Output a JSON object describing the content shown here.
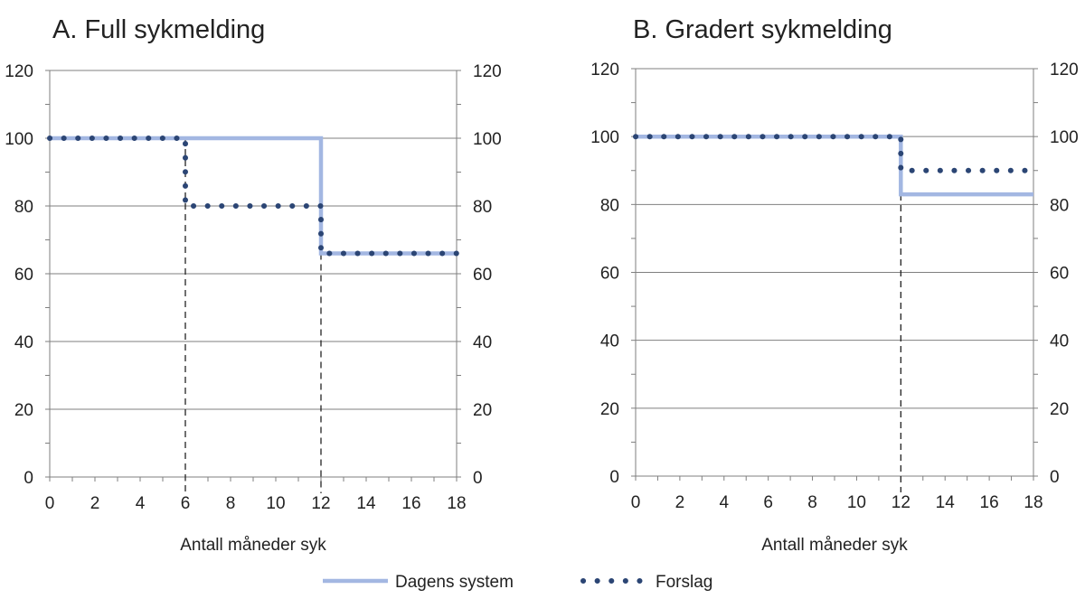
{
  "legend": {
    "placement": "bottom-center",
    "items": [
      {
        "name": "Dagens system",
        "style": "solid",
        "color": "#a3b7e2"
      },
      {
        "name": "Forslag",
        "style": "dotted",
        "color": "#2b4574"
      }
    ]
  },
  "chart_data": [
    {
      "type": "line",
      "title": "A. Full sykmelding",
      "xlabel": "Antall måneder syk",
      "ylabel": "",
      "xlim": [
        0,
        18
      ],
      "ylim": [
        0,
        120
      ],
      "xticks": [
        0,
        2,
        4,
        6,
        8,
        10,
        12,
        14,
        16,
        18
      ],
      "yticks": [
        0,
        20,
        40,
        60,
        80,
        100,
        120
      ],
      "grid": true,
      "secondary_y_axis": true,
      "reference_lines_x": [
        6,
        12
      ],
      "series": [
        {
          "name": "Dagens system",
          "style": "step",
          "x": [
            0,
            12,
            12,
            18
          ],
          "y": [
            100,
            100,
            66,
            66
          ]
        },
        {
          "name": "Forslag",
          "style": "step",
          "x": [
            0,
            6,
            6,
            12,
            12,
            18
          ],
          "y": [
            100,
            100,
            80,
            80,
            66,
            66
          ]
        }
      ]
    },
    {
      "type": "line",
      "title": "B. Gradert sykmelding",
      "xlabel": "Antall måneder syk",
      "ylabel": "",
      "xlim": [
        0,
        18
      ],
      "ylim": [
        0,
        120
      ],
      "xticks": [
        0,
        2,
        4,
        6,
        8,
        10,
        12,
        14,
        16,
        18
      ],
      "yticks": [
        0,
        20,
        40,
        60,
        80,
        100,
        120
      ],
      "grid": true,
      "secondary_y_axis": true,
      "reference_lines_x": [
        12
      ],
      "series": [
        {
          "name": "Dagens system",
          "style": "step",
          "x": [
            0,
            12,
            12,
            18
          ],
          "y": [
            100,
            100,
            83,
            83
          ]
        },
        {
          "name": "Forslag",
          "style": "step",
          "x": [
            0,
            12,
            12,
            18
          ],
          "y": [
            100,
            100,
            90,
            90
          ]
        }
      ]
    }
  ]
}
